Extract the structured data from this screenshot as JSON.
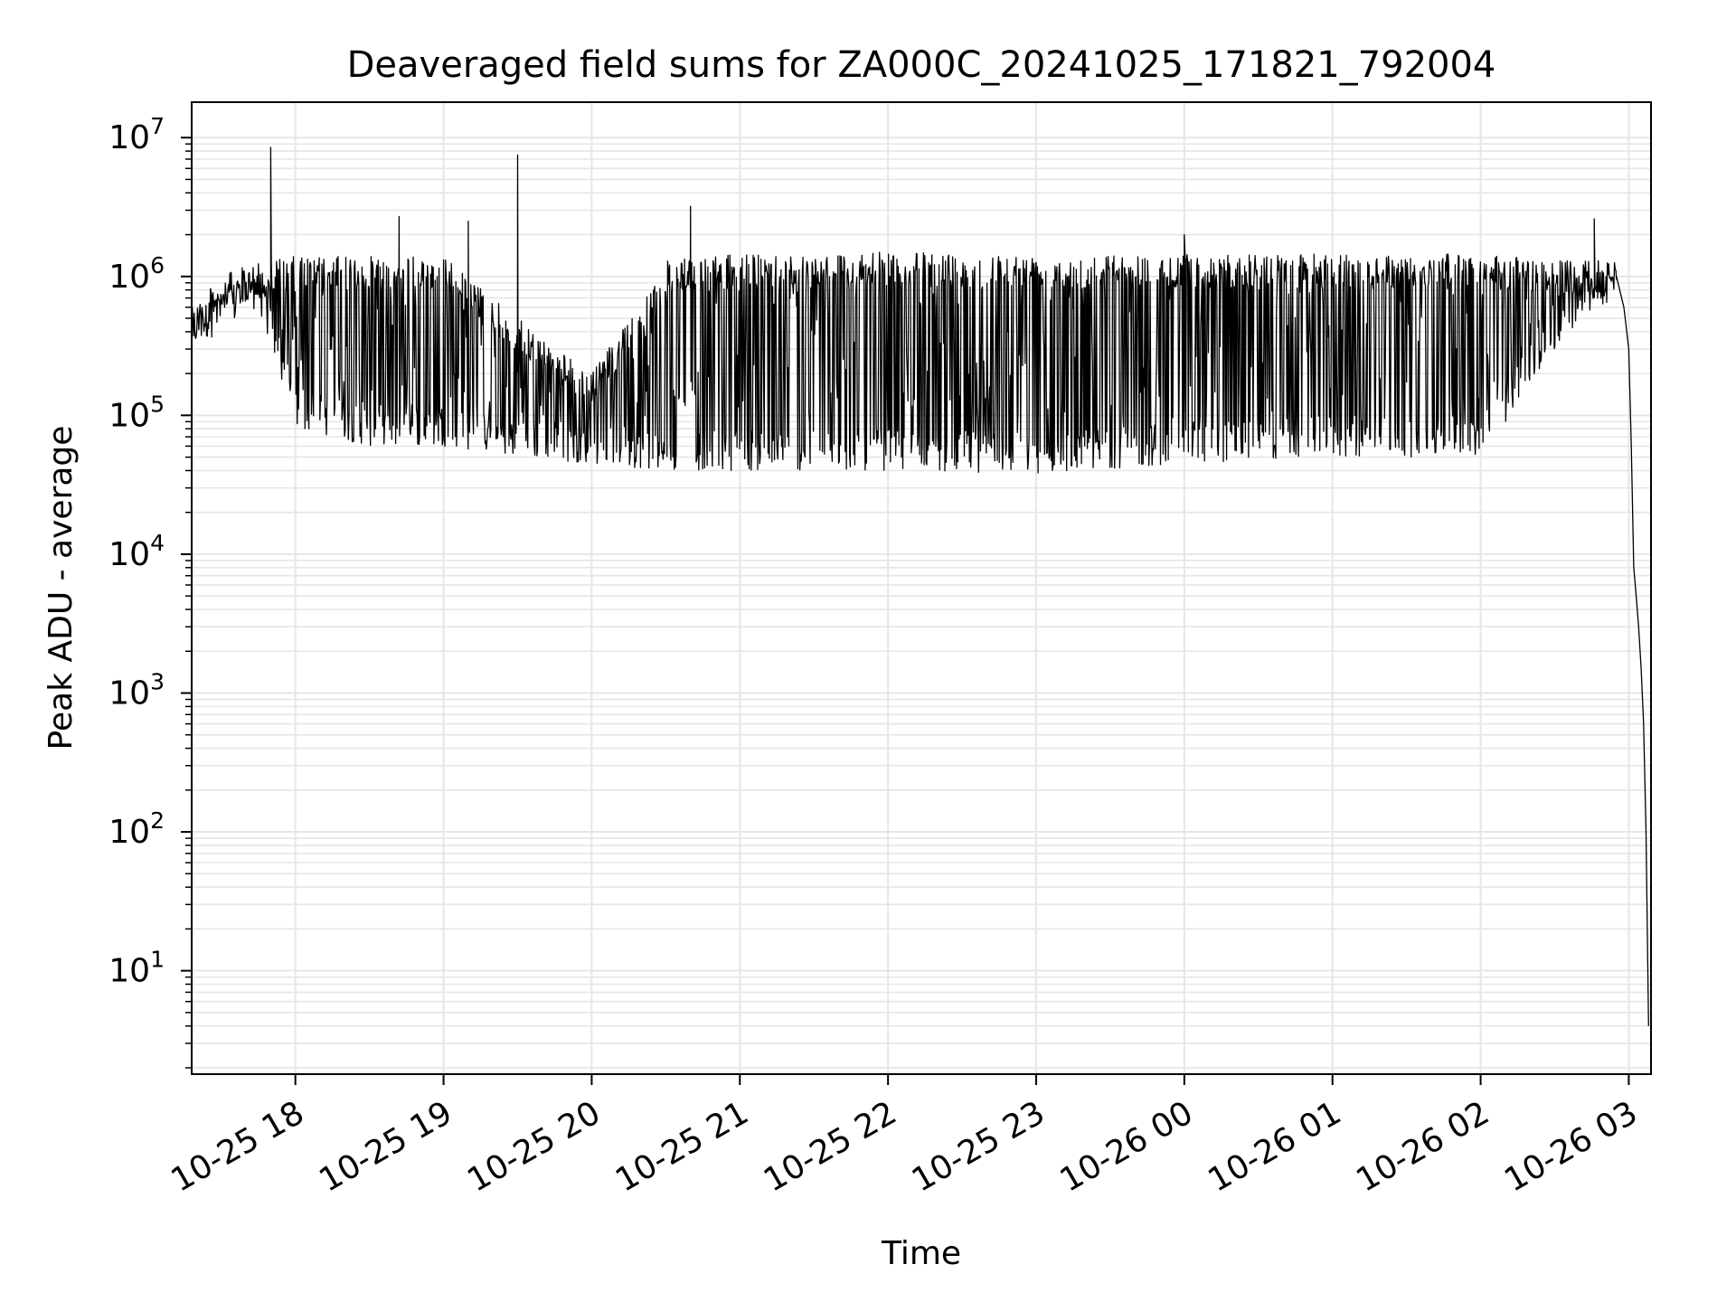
{
  "chart_data": {
    "type": "line",
    "title": "Deaveraged field sums for ZA000C_20241025_171821_792004",
    "xlabel": "Time",
    "ylabel": "Peak ADU - average",
    "yscale": "log",
    "grid": true,
    "legend": "none",
    "line_color": "#000000",
    "grid_color": "#e6e6e6",
    "xlim": [
      "2024-10-25 17:18",
      "2024-10-26 03:09"
    ],
    "ylim": [
      1.8,
      18000000
    ],
    "x_ticks": [
      {
        "t": "2024-10-25 18:00",
        "label": "10-25 18"
      },
      {
        "t": "2024-10-25 19:00",
        "label": "10-25 19"
      },
      {
        "t": "2024-10-25 20:00",
        "label": "10-25 20"
      },
      {
        "t": "2024-10-25 21:00",
        "label": "10-25 21"
      },
      {
        "t": "2024-10-25 22:00",
        "label": "10-25 22"
      },
      {
        "t": "2024-10-25 23:00",
        "label": "10-25 23"
      },
      {
        "t": "2024-10-26 00:00",
        "label": "10-26 00"
      },
      {
        "t": "2024-10-26 01:00",
        "label": "10-26 01"
      },
      {
        "t": "2024-10-26 02:00",
        "label": "10-26 02"
      },
      {
        "t": "2024-10-26 03:00",
        "label": "10-26 03"
      }
    ],
    "y_ticks": [
      {
        "v": 10,
        "base": "10",
        "exp": "1"
      },
      {
        "v": 100,
        "base": "10",
        "exp": "2"
      },
      {
        "v": 1000,
        "base": "10",
        "exp": "3"
      },
      {
        "v": 10000,
        "base": "10",
        "exp": "4"
      },
      {
        "v": 100000,
        "base": "10",
        "exp": "5"
      },
      {
        "v": 1000000,
        "base": "10",
        "exp": "6"
      },
      {
        "v": 10000000,
        "base": "10",
        "exp": "7"
      }
    ],
    "series": [
      {
        "envelope": [
          {
            "t": "2024-10-25 17:18",
            "upper": 600000,
            "lower": 300000
          },
          {
            "t": "2024-10-25 17:30",
            "upper": 1000000,
            "lower": 400000
          },
          {
            "t": "2024-10-25 17:45",
            "upper": 1300000,
            "lower": 600000
          },
          {
            "t": "2024-10-25 18:00",
            "upper": 1400000,
            "lower": 80000
          },
          {
            "t": "2024-10-25 18:30",
            "upper": 1400000,
            "lower": 60000
          },
          {
            "t": "2024-10-25 19:00",
            "upper": 1400000,
            "lower": 60000
          },
          {
            "t": "2024-10-25 19:30",
            "upper": 500000,
            "lower": 50000
          },
          {
            "t": "2024-10-25 20:00",
            "upper": 200000,
            "lower": 45000
          },
          {
            "t": "2024-10-25 20:30",
            "upper": 1300000,
            "lower": 40000
          },
          {
            "t": "2024-10-25 21:00",
            "upper": 1450000,
            "lower": 40000
          },
          {
            "t": "2024-10-25 22:00",
            "upper": 1500000,
            "lower": 40000
          },
          {
            "t": "2024-10-25 23:00",
            "upper": 1450000,
            "lower": 38000
          },
          {
            "t": "2024-10-26 00:00",
            "upper": 1450000,
            "lower": 45000
          },
          {
            "t": "2024-10-26 01:00",
            "upper": 1450000,
            "lower": 50000
          },
          {
            "t": "2024-10-26 02:00",
            "upper": 1450000,
            "lower": 50000
          },
          {
            "t": "2024-10-26 02:40",
            "upper": 1300000,
            "lower": 500000
          },
          {
            "t": "2024-10-26 02:55",
            "upper": 1300000,
            "lower": 700000
          }
        ],
        "spikes": [
          {
            "t": "2024-10-25 17:50",
            "y": 8500000
          },
          {
            "t": "2024-10-25 18:42",
            "y": 2700000
          },
          {
            "t": "2024-10-25 19:10",
            "y": 2500000
          },
          {
            "t": "2024-10-25 19:30",
            "y": 7500000
          },
          {
            "t": "2024-10-25 20:40",
            "y": 3200000
          },
          {
            "t": "2024-10-26 00:00",
            "y": 2000000
          },
          {
            "t": "2024-10-26 02:46",
            "y": 2600000
          }
        ],
        "tail": [
          {
            "t": "2024-10-26 02:55",
            "y": 1000000
          },
          {
            "t": "2024-10-26 02:58",
            "y": 600000
          },
          {
            "t": "2024-10-26 03:00",
            "y": 300000
          },
          {
            "t": "2024-10-26 03:01",
            "y": 60000
          },
          {
            "t": "2024-10-26 03:02",
            "y": 8000
          },
          {
            "t": "2024-10-26 03:03",
            "y": 5000
          },
          {
            "t": "2024-10-26 03:04",
            "y": 3000
          },
          {
            "t": "2024-10-26 03:05",
            "y": 1500
          },
          {
            "t": "2024-10-26 03:06",
            "y": 600
          },
          {
            "t": "2024-10-26 03:07",
            "y": 100
          },
          {
            "t": "2024-10-26 03:08",
            "y": 4
          }
        ]
      }
    ]
  }
}
